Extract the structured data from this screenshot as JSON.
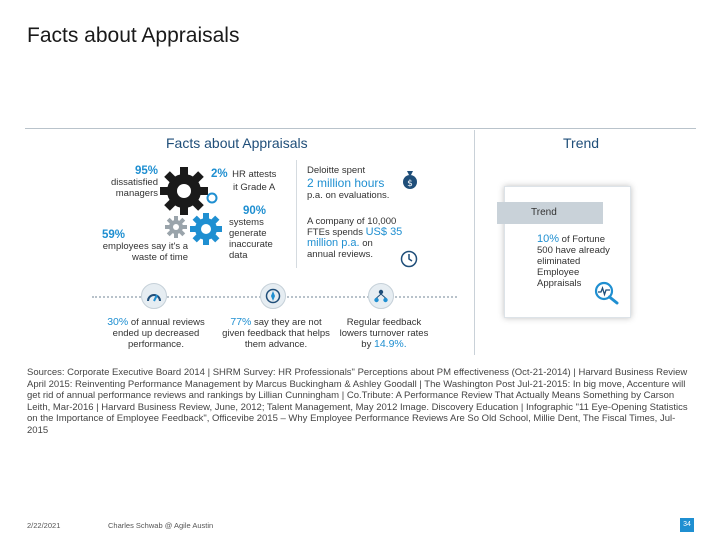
{
  "slide": {
    "title": "Facts about Appraisals",
    "date": "2/22/2021",
    "author": "Charles Schwab @ Agile Austin",
    "page": "34"
  },
  "panel": {
    "left_heading": "Facts about Appraisals",
    "right_heading": "Trend",
    "facts": {
      "dissatisfied_pct": "95%",
      "dissatisfied_text": "dissatisfied managers",
      "waste_pct": "59%",
      "waste_text": "employees say it's a waste of time",
      "hr_pct": "2%",
      "hr_text1": "HR attests",
      "hr_text2": "it Grade A",
      "systems_pct": "90%",
      "systems_text": "systems generate inaccurate data",
      "deloitte_line1": "Deloitte spent",
      "deloitte_amount": "2 million hours",
      "deloitte_line3": "p.a. on evaluations.",
      "company_text1": "A company of 10,000",
      "company_text2": "FTEs spends",
      "company_amount1": "US$ 35",
      "company_amount2": "million p.a.",
      "company_text3": "on",
      "company_text4": "annual reviews.",
      "reviews_pct": "30%",
      "reviews_text": "of annual reviews ended up decreased performance.",
      "feedback_pct": "77%",
      "feedback_text": "say they are not given feedback that helps them advance.",
      "regular_text": "Regular feedback lowers turnover rates by",
      "regular_pct": "14.9%."
    },
    "trend": {
      "bar_label": "Trend",
      "pct": "10%",
      "text1": "of",
      "text2": "Fortune 500 have already eliminated Employee Appraisals"
    }
  },
  "sources": "Sources: Corporate Executive Board 2014 | SHRM Survey: HR Professionals\" Perceptions about PM effectiveness (Oct-21-2014) | Harvard Business Review April 2015: Reinventing Performance Management by Marcus Buckingham & Ashley Goodall | The Washington Post Jul-21-2015: In big move, Accenture will get rid of annual performance reviews and rankings by Lillian Cunningham | Co.Tribute: A Performance Review That Actually Means Something by Carson Leith, Mar-2016 | Harvard Business Review, June, 2012; Talent Management, May 2012 Image. Discovery Education | Infographic \"11 Eye-Opening Statistics on the Importance of Employee Feedback\", Officevibe 2015 – Why Employee Performance Reviews Are So Old School, Millie Dent, The Fiscal Times, Jul-2015",
  "colors": {
    "accent": "#1f8fd1",
    "heading": "#1f4e79",
    "page_badge": "#1f8fd1"
  },
  "icons": [
    "gear-icon",
    "money-bag-icon",
    "clock-icon",
    "speedometer-icon",
    "compass-icon",
    "network-icon",
    "magnifier-icon"
  ]
}
